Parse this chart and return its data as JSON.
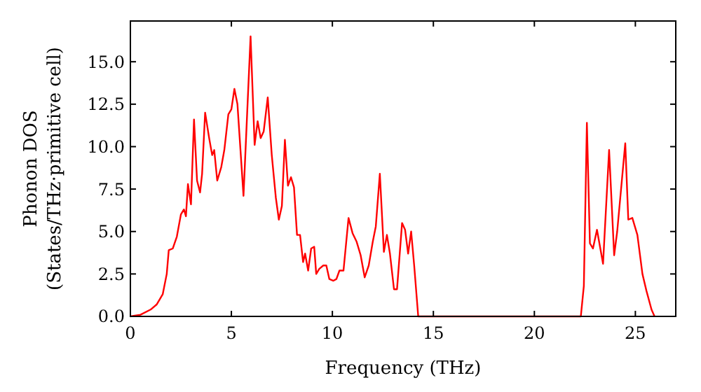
{
  "chart_data": {
    "type": "line",
    "xlabel": "Frequency (THz)",
    "ylabel": "Phonon DOS\n(States/THz·primitive cell)",
    "xlim": [
      0,
      27
    ],
    "ylim": [
      0,
      17.4
    ],
    "xticks": [
      0,
      5,
      10,
      15,
      20,
      25
    ],
    "yticks": [
      {
        "value": 0,
        "label": "0.0"
      },
      {
        "value": 2.5,
        "label": "2.5"
      },
      {
        "value": 5,
        "label": "5.0"
      },
      {
        "value": 7.5,
        "label": "7.5"
      },
      {
        "value": 10,
        "label": "10.0"
      },
      {
        "value": 12.5,
        "label": "12.5"
      },
      {
        "value": 15,
        "label": "15.0"
      }
    ],
    "grid": false,
    "marker": "none",
    "line_style": "solid",
    "series": [
      {
        "color": "#ff0000",
        "x": [
          0,
          0.5,
          1,
          1.3,
          1.6,
          1.8,
          1.9,
          2.1,
          2.3,
          2.5,
          2.65,
          2.75,
          2.85,
          3.0,
          3.15,
          3.3,
          3.45,
          3.55,
          3.7,
          3.9,
          4.05,
          4.15,
          4.3,
          4.5,
          4.65,
          4.85,
          5.0,
          5.15,
          5.3,
          5.6,
          5.95,
          6.15,
          6.3,
          6.45,
          6.6,
          6.8,
          7.0,
          7.2,
          7.35,
          7.5,
          7.65,
          7.8,
          7.95,
          8.1,
          8.25,
          8.4,
          8.55,
          8.65,
          8.8,
          8.95,
          9.1,
          9.2,
          9.35,
          9.55,
          9.7,
          9.85,
          10.05,
          10.2,
          10.35,
          10.55,
          10.8,
          11.0,
          11.2,
          11.4,
          11.6,
          11.8,
          12.0,
          12.15,
          12.35,
          12.55,
          12.7,
          12.85,
          13.05,
          13.2,
          13.45,
          13.6,
          13.75,
          13.9,
          14.05,
          14.25,
          22.3,
          22.45,
          22.6,
          22.75,
          22.9,
          23.1,
          23.4,
          23.7,
          23.95,
          24.1,
          24.5,
          24.65,
          24.85,
          25.1,
          25.35,
          25.55,
          25.8,
          25.95
        ],
        "values": [
          0,
          0.1,
          0.4,
          0.7,
          1.3,
          2.5,
          3.9,
          4,
          4.7,
          6,
          6.3,
          5.9,
          7.8,
          6.6,
          11.6,
          8,
          7.3,
          8.4,
          12,
          10.5,
          9.5,
          9.8,
          8,
          8.8,
          9.8,
          11.9,
          12.2,
          13.4,
          12.5,
          7.1,
          16.5,
          10.1,
          11.5,
          10.5,
          10.9,
          12.9,
          9.5,
          7,
          5.7,
          6.5,
          10.4,
          7.7,
          8.2,
          7.6,
          4.8,
          4.8,
          3.2,
          3.7,
          2.7,
          4,
          4.1,
          2.5,
          2.8,
          3,
          3,
          2.2,
          2.1,
          2.2,
          2.7,
          2.7,
          5.8,
          4.9,
          4.4,
          3.6,
          2.3,
          3,
          4.4,
          5.3,
          8.4,
          3.8,
          4.8,
          3.7,
          1.6,
          1.6,
          5.5,
          5.1,
          3.7,
          5,
          3,
          0,
          0,
          1.8,
          11.4,
          4.3,
          4.0,
          5.1,
          3.1,
          9.8,
          3.6,
          5.0,
          10.2,
          5.7,
          5.8,
          4.8,
          2.5,
          1.5,
          0.4,
          0
        ]
      }
    ]
  }
}
